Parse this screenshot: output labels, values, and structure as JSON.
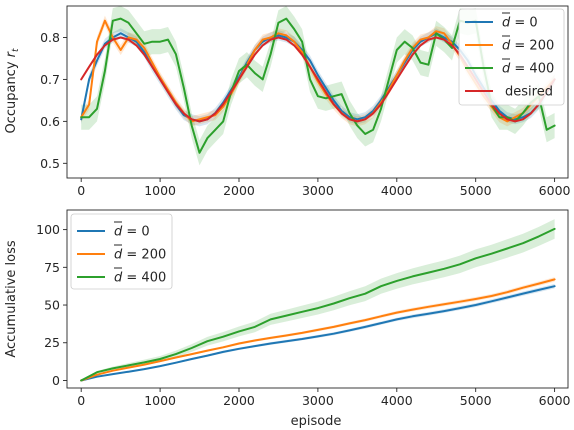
{
  "chart_data": [
    {
      "type": "line",
      "ylabel": "Occupancy r_t",
      "ylabel_main": "Occupancy ",
      "ylabel_var": "r",
      "ylabel_sub": "t",
      "xlim": [
        -180,
        6170
      ],
      "ylim": [
        0.465,
        0.875
      ],
      "xticks": [
        0,
        1000,
        2000,
        3000,
        4000,
        5000,
        6000
      ],
      "xtick_labels": [
        "0",
        "1000",
        "2000",
        "3000",
        "4000",
        "5000",
        "6000"
      ],
      "yticks": [
        0.5,
        0.6,
        0.7,
        0.8
      ],
      "ytick_labels": [
        "0.5",
        "0.6",
        "0.7",
        "0.8"
      ],
      "grid": false,
      "legend_position": "top-right",
      "series": [
        {
          "name": "d̄ = 0",
          "name_var": "d",
          "name_rest": " = 0",
          "color": "#1f77b4",
          "band": 0.012,
          "x": [
            0,
            100,
            200,
            300,
            400,
            500,
            600,
            700,
            800,
            900,
            1000,
            1100,
            1200,
            1300,
            1400,
            1500,
            1600,
            1700,
            1800,
            1900,
            2000,
            2100,
            2200,
            2300,
            2400,
            2500,
            2600,
            2700,
            2800,
            2900,
            3000,
            3100,
            3200,
            3300,
            3400,
            3500,
            3600,
            3700,
            3800,
            3900,
            4000,
            4100,
            4200,
            4300,
            4400,
            4500,
            4600,
            4700,
            4800,
            4900,
            5000,
            5100,
            5200,
            5300,
            5400,
            5500,
            5600,
            5700,
            5800,
            5900,
            6000
          ],
          "y": [
            0.605,
            0.7,
            0.745,
            0.785,
            0.8,
            0.81,
            0.8,
            0.79,
            0.765,
            0.73,
            0.7,
            0.67,
            0.64,
            0.615,
            0.605,
            0.6,
            0.605,
            0.62,
            0.645,
            0.675,
            0.705,
            0.74,
            0.77,
            0.79,
            0.8,
            0.805,
            0.8,
            0.79,
            0.77,
            0.745,
            0.71,
            0.68,
            0.65,
            0.625,
            0.61,
            0.605,
            0.61,
            0.625,
            0.65,
            0.68,
            0.71,
            0.74,
            0.77,
            0.79,
            0.8,
            0.81,
            0.8,
            0.79,
            0.77,
            0.745,
            0.71,
            0.68,
            0.65,
            0.625,
            0.61,
            0.605,
            0.61,
            0.62,
            0.64,
            0.67,
            0.7
          ]
        },
        {
          "name": "d̄ = 200",
          "name_var": "d",
          "name_rest": " = 200",
          "color": "#ff7f0e",
          "band": 0.012,
          "x": [
            0,
            100,
            200,
            300,
            400,
            500,
            600,
            700,
            800,
            900,
            1000,
            1100,
            1200,
            1300,
            1400,
            1500,
            1600,
            1700,
            1800,
            1900,
            2000,
            2100,
            2200,
            2300,
            2400,
            2500,
            2600,
            2700,
            2800,
            2900,
            3000,
            3100,
            3200,
            3300,
            3400,
            3500,
            3600,
            3700,
            3800,
            3900,
            4000,
            4100,
            4200,
            4300,
            4400,
            4500,
            4600,
            4700,
            4800,
            4900,
            5000,
            5100,
            5200,
            5300,
            5400,
            5500,
            5600,
            5700,
            5800,
            5900,
            6000
          ],
          "y": [
            0.61,
            0.64,
            0.79,
            0.84,
            0.8,
            0.77,
            0.8,
            0.795,
            0.775,
            0.74,
            0.705,
            0.675,
            0.645,
            0.62,
            0.6,
            0.605,
            0.61,
            0.615,
            0.635,
            0.665,
            0.7,
            0.735,
            0.77,
            0.795,
            0.8,
            0.81,
            0.805,
            0.79,
            0.765,
            0.73,
            0.695,
            0.665,
            0.64,
            0.62,
            0.605,
            0.6,
            0.605,
            0.62,
            0.645,
            0.675,
            0.71,
            0.745,
            0.775,
            0.795,
            0.8,
            0.815,
            0.81,
            0.785,
            0.755,
            0.72,
            0.69,
            0.66,
            0.635,
            0.61,
            0.6,
            0.61,
            0.62,
            0.64,
            0.66,
            0.68,
            0.7
          ]
        },
        {
          "name": "d̄ = 400",
          "name_var": "d",
          "name_rest": " = 400",
          "color": "#2ca02c",
          "band": 0.03,
          "x": [
            0,
            100,
            200,
            300,
            400,
            500,
            600,
            700,
            800,
            900,
            1000,
            1100,
            1200,
            1300,
            1400,
            1500,
            1600,
            1700,
            1800,
            1900,
            2000,
            2100,
            2200,
            2300,
            2400,
            2500,
            2600,
            2700,
            2800,
            2900,
            3000,
            3100,
            3200,
            3300,
            3400,
            3500,
            3600,
            3700,
            3800,
            3900,
            4000,
            4100,
            4200,
            4300,
            4400,
            4500,
            4600,
            4700,
            4800,
            4900,
            5000,
            5100,
            5200,
            5300,
            5400,
            5500,
            5600,
            5700,
            5800,
            5900,
            6000
          ],
          "y": [
            0.61,
            0.61,
            0.63,
            0.72,
            0.84,
            0.845,
            0.835,
            0.81,
            0.785,
            0.79,
            0.79,
            0.795,
            0.76,
            0.68,
            0.59,
            0.525,
            0.56,
            0.58,
            0.6,
            0.67,
            0.72,
            0.735,
            0.715,
            0.7,
            0.76,
            0.835,
            0.845,
            0.82,
            0.79,
            0.7,
            0.66,
            0.655,
            0.66,
            0.665,
            0.62,
            0.59,
            0.57,
            0.58,
            0.63,
            0.7,
            0.77,
            0.79,
            0.775,
            0.74,
            0.735,
            0.81,
            0.795,
            0.775,
            0.84,
            0.835,
            0.84,
            0.73,
            0.64,
            0.61,
            0.61,
            0.6,
            0.62,
            0.645,
            0.66,
            0.58,
            0.59
          ]
        },
        {
          "name": "desired",
          "color": "#d62728",
          "band": 0,
          "x": [
            0,
            100,
            200,
            300,
            400,
            500,
            600,
            700,
            800,
            900,
            1000,
            1100,
            1200,
            1300,
            1400,
            1500,
            1600,
            1700,
            1800,
            1900,
            2000,
            2100,
            2200,
            2300,
            2400,
            2500,
            2600,
            2700,
            2800,
            2900,
            3000,
            3100,
            3200,
            3300,
            3400,
            3500,
            3600,
            3700,
            3800,
            3900,
            4000,
            4100,
            4200,
            4300,
            4400,
            4500,
            4600,
            4700,
            4800,
            4900,
            5000,
            5100,
            5200,
            5300,
            5400,
            5500,
            5600,
            5700,
            5800,
            5900,
            6000
          ],
          "y": [
            0.7,
            0.73,
            0.759,
            0.781,
            0.795,
            0.8,
            0.795,
            0.781,
            0.759,
            0.73,
            0.7,
            0.67,
            0.641,
            0.619,
            0.605,
            0.6,
            0.605,
            0.619,
            0.641,
            0.67,
            0.7,
            0.73,
            0.759,
            0.781,
            0.795,
            0.8,
            0.795,
            0.781,
            0.759,
            0.73,
            0.7,
            0.67,
            0.641,
            0.619,
            0.605,
            0.6,
            0.605,
            0.619,
            0.641,
            0.67,
            0.7,
            0.73,
            0.759,
            0.781,
            0.795,
            0.8,
            0.795,
            0.781,
            0.759,
            0.73,
            0.7,
            0.67,
            0.641,
            0.619,
            0.605,
            0.6,
            0.605,
            0.619,
            0.641,
            0.67,
            0.7
          ]
        }
      ]
    },
    {
      "type": "line",
      "ylabel": "Accumulative loss",
      "xlabel": "episode",
      "xlim": [
        -180,
        6170
      ],
      "ylim": [
        -5,
        113
      ],
      "xticks": [
        0,
        1000,
        2000,
        3000,
        4000,
        5000,
        6000
      ],
      "xtick_labels": [
        "0",
        "1000",
        "2000",
        "3000",
        "4000",
        "5000",
        "6000"
      ],
      "yticks": [
        0,
        25,
        50,
        75,
        100
      ],
      "ytick_labels": [
        "0",
        "25",
        "50",
        "75",
        "100"
      ],
      "grid": false,
      "legend_position": "top-left",
      "series": [
        {
          "name": "d̄ = 0",
          "name_var": "d",
          "name_rest": " = 0",
          "color": "#1f77b4",
          "x": [
            0,
            200,
            400,
            600,
            800,
            1000,
            1200,
            1400,
            1600,
            1800,
            2000,
            2200,
            2400,
            2600,
            2800,
            3000,
            3200,
            3400,
            3600,
            3800,
            4000,
            4200,
            4400,
            4600,
            4800,
            5000,
            5200,
            5400,
            5600,
            5800,
            6000
          ],
          "y": [
            0,
            2.5,
            4.2,
            5.8,
            7.5,
            9.5,
            11.8,
            14.2,
            16.5,
            18.9,
            21,
            22.8,
            24.5,
            26,
            27.5,
            29.2,
            31,
            33.2,
            35.5,
            38,
            40.5,
            42.5,
            44.2,
            46,
            48,
            50,
            52.5,
            55,
            57.6,
            60,
            62.5
          ],
          "band": [
            0,
            0.3,
            0.4,
            0.5,
            0.5,
            0.6,
            0.6,
            0.7,
            0.7,
            0.8,
            0.8,
            0.8,
            0.9,
            0.9,
            0.9,
            1,
            1,
            1,
            1.1,
            1.1,
            1.1,
            1.2,
            1.2,
            1.2,
            1.3,
            1.3,
            1.3,
            1.4,
            1.4,
            1.4,
            1.5
          ]
        },
        {
          "name": "d̄ = 200",
          "name_var": "d",
          "name_rest": " = 200",
          "color": "#ff7f0e",
          "x": [
            0,
            200,
            400,
            600,
            800,
            1000,
            1200,
            1400,
            1600,
            1800,
            2000,
            2200,
            2400,
            2600,
            2800,
            3000,
            3200,
            3400,
            3600,
            3800,
            4000,
            4200,
            4400,
            4600,
            4800,
            5000,
            5200,
            5400,
            5600,
            5800,
            6000
          ],
          "y": [
            0,
            3.8,
            6.5,
            8.5,
            10.5,
            12.8,
            15.2,
            17.5,
            19.8,
            22,
            24.5,
            26.5,
            28.2,
            29.8,
            31.5,
            33.5,
            35.5,
            37.8,
            40,
            42.5,
            45,
            47,
            48.8,
            50.5,
            52.2,
            54,
            56,
            58.5,
            61.5,
            64.2,
            67
          ],
          "band": [
            0,
            0.3,
            0.4,
            0.5,
            0.5,
            0.6,
            0.6,
            0.7,
            0.7,
            0.8,
            0.8,
            0.8,
            0.9,
            0.9,
            0.9,
            1,
            1,
            1,
            1.1,
            1.1,
            1.1,
            1.2,
            1.2,
            1.2,
            1.3,
            1.3,
            1.3,
            1.4,
            1.4,
            1.4,
            1.5
          ]
        },
        {
          "name": "d̄ = 400",
          "name_var": "d",
          "name_rest": " = 400",
          "color": "#2ca02c",
          "x": [
            0,
            200,
            400,
            600,
            800,
            1000,
            1200,
            1400,
            1600,
            1800,
            2000,
            2200,
            2400,
            2600,
            2800,
            3000,
            3200,
            3400,
            3600,
            3800,
            4000,
            4200,
            4400,
            4600,
            4800,
            5000,
            5200,
            5400,
            5600,
            5800,
            6000
          ],
          "y": [
            0,
            5.5,
            8,
            10,
            12,
            14.2,
            17.5,
            21.5,
            26,
            29,
            32.5,
            35.5,
            40.5,
            43,
            45.5,
            48,
            51,
            54.5,
            57.5,
            62.5,
            66,
            69,
            71.5,
            74,
            77,
            81,
            84,
            87.5,
            91,
            95.5,
            100.5
          ],
          "band": [
            0,
            0.8,
            1.2,
            1.5,
            1.8,
            2,
            2.3,
            2.6,
            2.9,
            3.1,
            3.3,
            3.5,
            3.7,
            3.9,
            4.1,
            4.3,
            4.5,
            4.7,
            4.9,
            5,
            5.2,
            5.3,
            5.5,
            5.6,
            5.8,
            5.9,
            6,
            6.1,
            6.2,
            6.3,
            6.5
          ]
        }
      ]
    }
  ]
}
